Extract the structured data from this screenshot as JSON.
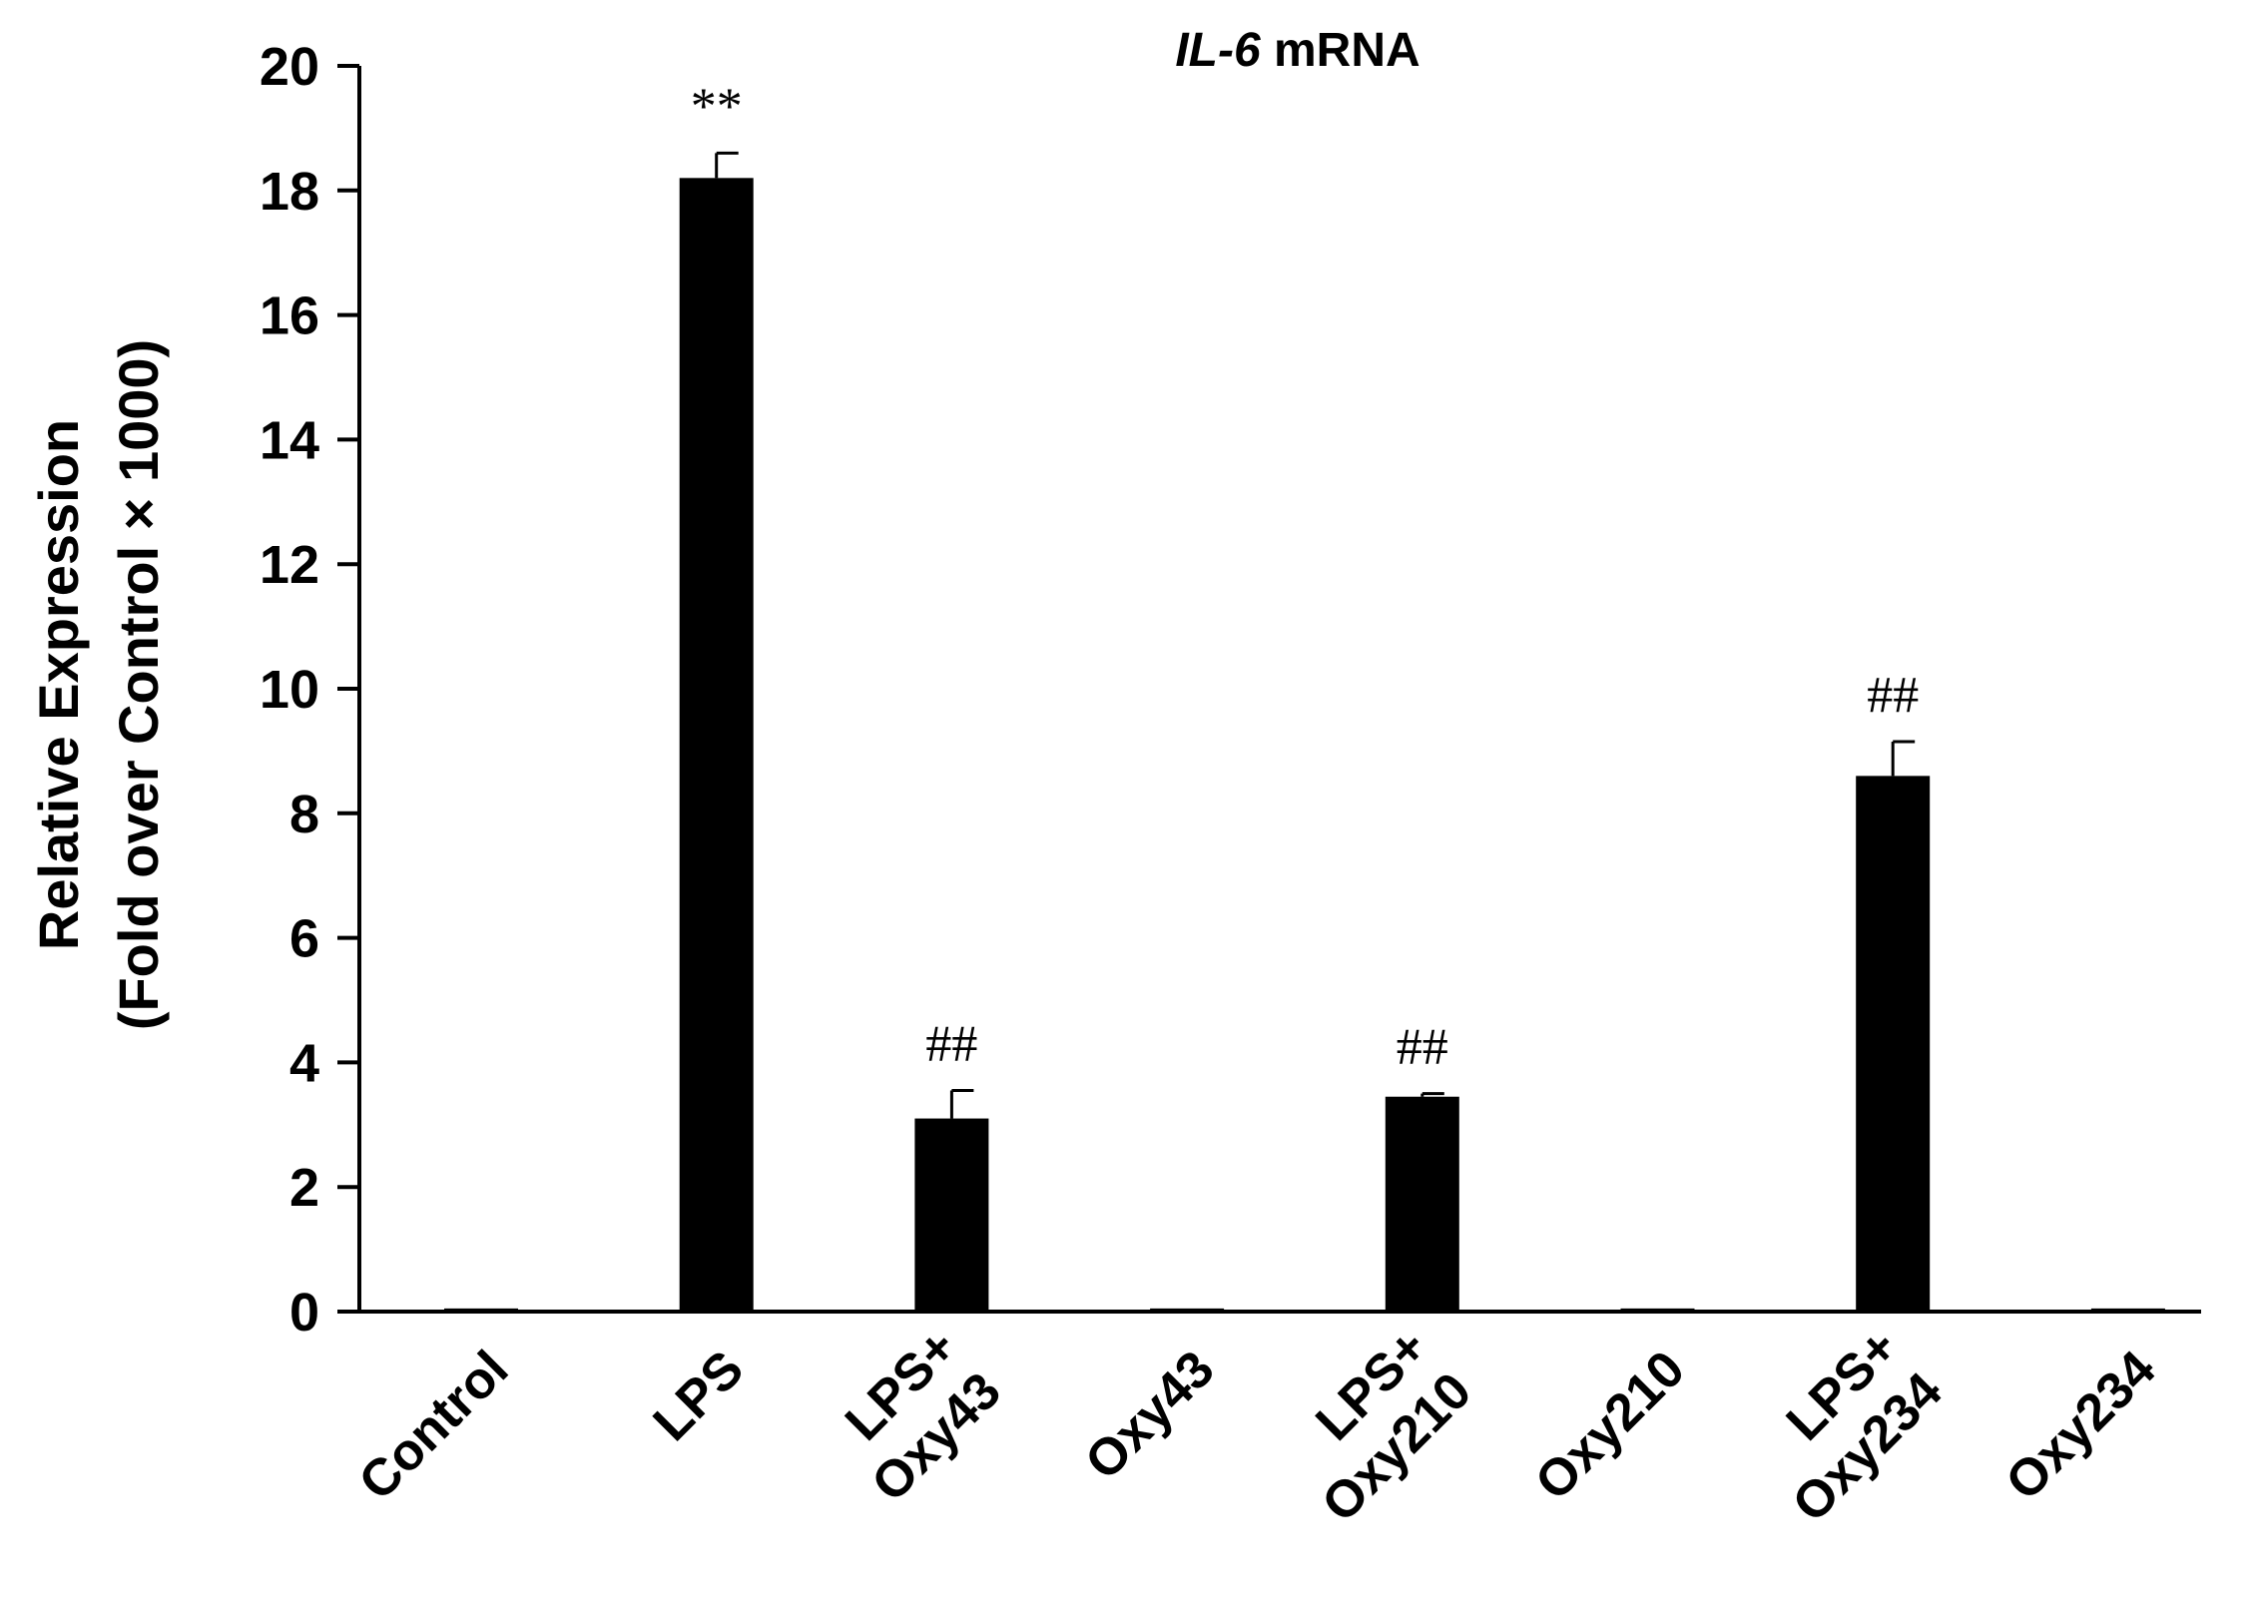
{
  "chart_data": {
    "type": "bar",
    "title_italic": "IL-6",
    "title_rest": " mRNA",
    "ylabel_line1": "Relative Expression",
    "ylabel_line2": "(Fold over Control × 1000)",
    "xlabel": "",
    "ylim": [
      0,
      20
    ],
    "yticks": [
      0,
      2,
      4,
      6,
      8,
      10,
      12,
      14,
      16,
      18,
      20
    ],
    "categories": [
      [
        "Control"
      ],
      [
        "LPS"
      ],
      [
        "LPS+",
        "Oxy43"
      ],
      [
        "Oxy43"
      ],
      [
        "LPS+",
        "Oxy210"
      ],
      [
        "Oxy210"
      ],
      [
        "LPS+",
        "Oxy234"
      ],
      [
        "Oxy234"
      ]
    ],
    "values": [
      0.05,
      18.2,
      3.1,
      0.05,
      3.45,
      0.05,
      8.6,
      0.05
    ],
    "errors": [
      0,
      0.4,
      0.45,
      0,
      0.05,
      0,
      0.55,
      0
    ],
    "annotations": [
      "",
      "**",
      "##",
      "",
      "##",
      "",
      "##",
      ""
    ],
    "bar_color": "#000000",
    "grid": false,
    "legend": "none"
  }
}
